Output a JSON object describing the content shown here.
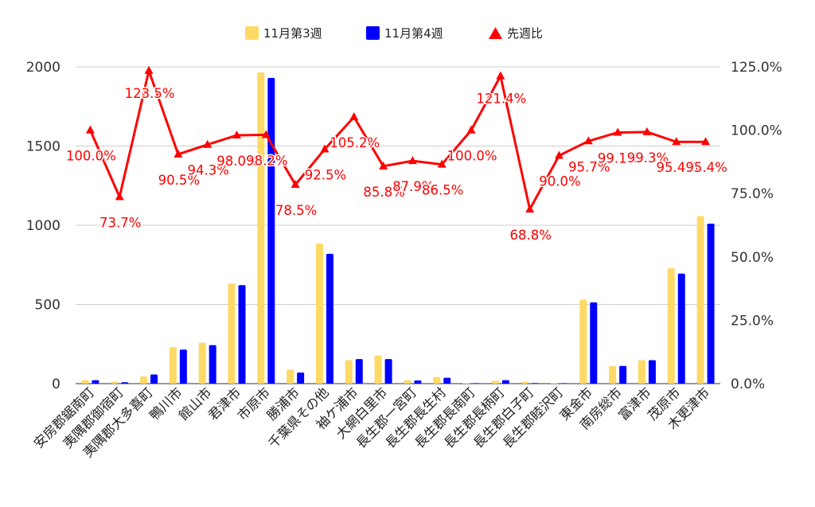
{
  "chart_data": {
    "type": "bar",
    "categories": [
      "安房郡鋸南町",
      "夷隅郡御宿町",
      "夷隅郡大多喜町",
      "鴨川市",
      "館山市",
      "君津市",
      "市原市",
      "勝浦市",
      "千葉県その他",
      "袖ケ浦市",
      "大網白里市",
      "長生郡一宮町",
      "長生郡長生村",
      "長生郡長南町",
      "長生郡長柄町",
      "長生郡白子町",
      "長生郡睦沢町",
      "東金市",
      "南房総市",
      "富津市",
      "茂原市",
      "木更津市"
    ],
    "series": [
      {
        "name": "11月第3週",
        "type": "bar",
        "axis": "left",
        "color": "#FFD966",
        "values": [
          22,
          12,
          45,
          230,
          258,
          632,
          1965,
          88,
          885,
          148,
          178,
          22,
          42,
          3,
          18,
          12,
          3,
          530,
          112,
          148,
          728,
          1058
        ]
      },
      {
        "name": "11月第4週",
        "type": "bar",
        "axis": "left",
        "color": "#0000FF",
        "values": [
          22,
          9,
          58,
          215,
          243,
          622,
          1930,
          70,
          820,
          155,
          155,
          20,
          37,
          3,
          22,
          4,
          3,
          513,
          112,
          148,
          695,
          1010
        ]
      },
      {
        "name": "先週比",
        "type": "line",
        "axis": "right",
        "color": "#FF0000",
        "values": [
          100.0,
          73.7,
          123.5,
          90.5,
          94.3,
          98.0,
          98.2,
          78.5,
          92.5,
          105.2,
          85.8,
          87.9,
          86.5,
          100.0,
          121.4,
          68.8,
          90.0,
          95.7,
          99.1,
          99.3,
          95.4,
          95.4
        ],
        "labels": [
          "100.0%",
          "73.7%",
          "123.5%",
          "90.5%",
          "94.3%",
          "98.0%",
          "98.2%",
          "78.5%",
          "92.5%",
          "105.2%",
          "85.8%",
          "87.9%",
          "86.5%",
          "100.0%",
          "121.4%",
          "68.8%",
          "90.0%",
          "95.7%",
          "99.1%",
          "99.3%",
          "95.4%",
          "95.4%"
        ]
      }
    ],
    "y_left": {
      "min": 0,
      "max": 2000,
      "ticks": [
        "0",
        "500",
        "1000",
        "1500",
        "2000"
      ],
      "tick_values": [
        0,
        500,
        1000,
        1500,
        2000
      ]
    },
    "y_right": {
      "min": 0,
      "max": 125,
      "ticks": [
        "0.0%",
        "25.0%",
        "50.0%",
        "75.0%",
        "100.0%",
        "125.0%"
      ],
      "tick_values": [
        0,
        25,
        50,
        75,
        100,
        125
      ]
    },
    "legend": {
      "position": "top",
      "items": [
        "11月第3週",
        "11月第4週",
        "先週比"
      ]
    },
    "grid": true,
    "title": "",
    "xlabel": "",
    "ylabel": ""
  }
}
